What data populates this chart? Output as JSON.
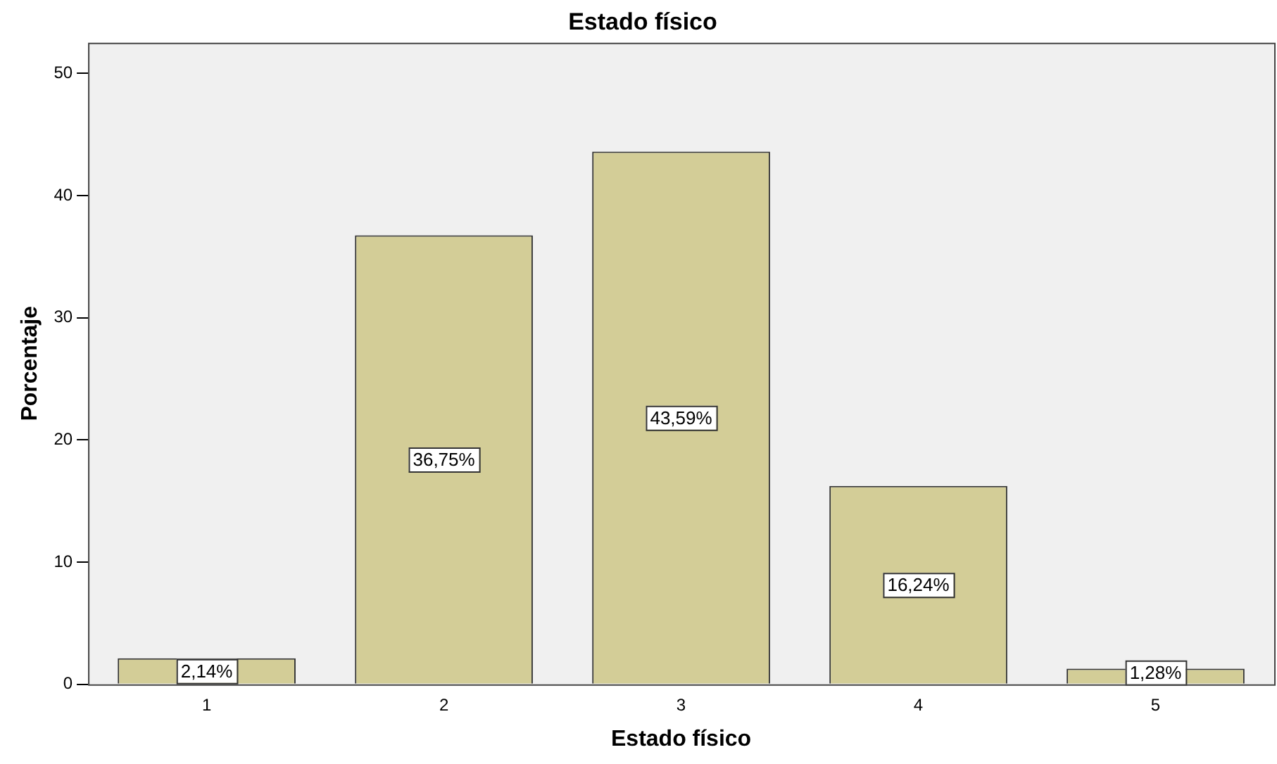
{
  "chart_data": {
    "type": "bar",
    "title": "Estado físico",
    "xlabel": "Estado físico",
    "ylabel": "Porcentaje",
    "categories": [
      "1",
      "2",
      "3",
      "4",
      "5"
    ],
    "values": [
      2.14,
      36.75,
      43.59,
      16.24,
      1.28
    ],
    "value_labels": [
      "2,14%",
      "36,75%",
      "43,59%",
      "16,24%",
      "1,28%"
    ],
    "color": "#d3cd97",
    "ylim": [
      0,
      52.5
    ],
    "yticks": [
      0,
      10,
      20,
      30,
      40,
      50
    ],
    "grid": false,
    "legend": false
  }
}
